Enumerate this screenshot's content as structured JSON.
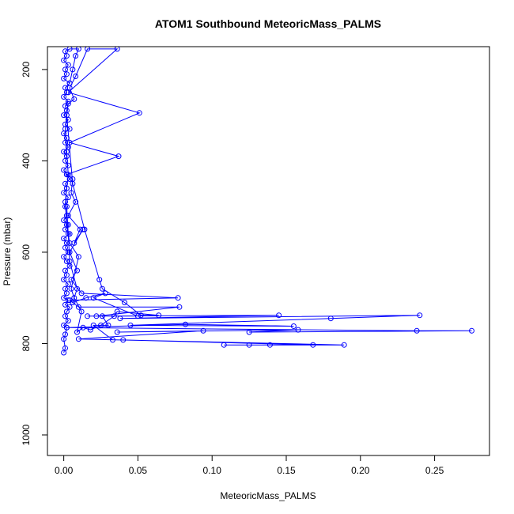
{
  "chart_data": {
    "type": "scatter",
    "title": "ATOM1 Southbound MeteoricMass_PALMS",
    "xlabel": "MeteoricMass_PALMS",
    "ylabel": "Pressure (mbar)",
    "xlim": [
      -0.011,
      0.287
    ],
    "ylim": [
      1045,
      150
    ],
    "y_reversed": true,
    "grid": false,
    "marker": "open-circle",
    "connect_points": true,
    "color": "#0000ff",
    "x_ticks": [
      "0.00",
      "0.05",
      "0.10",
      "0.15",
      "0.20",
      "0.25"
    ],
    "x_tick_values": [
      0,
      0.05,
      0.1,
      0.15,
      0.2,
      0.25
    ],
    "y_ticks": [
      "200",
      "400",
      "600",
      "800",
      "1000"
    ],
    "y_tick_values": [
      200,
      400,
      600,
      800,
      1000
    ],
    "series": [
      {
        "points": [
          [
            0.0,
            820
          ],
          [
            0.001,
            810
          ],
          [
            0.0,
            790
          ],
          [
            0.001,
            780
          ],
          [
            0.002,
            765
          ],
          [
            0.0,
            760
          ],
          [
            0.003,
            750
          ],
          [
            0.001,
            740
          ],
          [
            0.002,
            730
          ],
          [
            0.004,
            720
          ],
          [
            0.001,
            715
          ],
          [
            0.003,
            705
          ],
          [
            0.0,
            700
          ],
          [
            0.002,
            690
          ],
          [
            0.001,
            680
          ],
          [
            0.003,
            670
          ],
          [
            0.0,
            660
          ],
          [
            0.002,
            650
          ],
          [
            0.001,
            640
          ],
          [
            0.004,
            630
          ],
          [
            0.002,
            620
          ],
          [
            0.0,
            610
          ],
          [
            0.003,
            600
          ],
          [
            0.001,
            590
          ],
          [
            0.002,
            580
          ],
          [
            0.0,
            570
          ],
          [
            0.004,
            560
          ],
          [
            0.001,
            550
          ],
          [
            0.003,
            540
          ],
          [
            0.0,
            530
          ],
          [
            0.002,
            520
          ],
          [
            0.001,
            500
          ],
          [
            0.003,
            480
          ],
          [
            0.0,
            470
          ],
          [
            0.002,
            460
          ],
          [
            0.001,
            450
          ],
          [
            0.004,
            440
          ],
          [
            0.002,
            430
          ],
          [
            0.0,
            420
          ],
          [
            0.003,
            410
          ],
          [
            0.001,
            400
          ],
          [
            0.002,
            390
          ],
          [
            0.0,
            380
          ],
          [
            0.003,
            370
          ],
          [
            0.001,
            360
          ],
          [
            0.002,
            350
          ],
          [
            0.0,
            340
          ],
          [
            0.004,
            330
          ],
          [
            0.001,
            320
          ],
          [
            0.003,
            310
          ],
          [
            0.0,
            300
          ],
          [
            0.002,
            290
          ],
          [
            0.001,
            280
          ],
          [
            0.003,
            270
          ],
          [
            0.0,
            260
          ],
          [
            0.002,
            250
          ],
          [
            0.001,
            240
          ],
          [
            0.004,
            230
          ],
          [
            0.0,
            220
          ],
          [
            0.002,
            210
          ],
          [
            0.001,
            200
          ],
          [
            0.003,
            190
          ],
          [
            0.0,
            180
          ],
          [
            0.002,
            170
          ],
          [
            0.001,
            160
          ],
          [
            0.004,
            155
          ],
          [
            0.01,
            155
          ],
          [
            0.008,
            170
          ],
          [
            0.006,
            200
          ],
          [
            0.004,
            230
          ]
        ]
      },
      {
        "points": [
          [
            0.003,
            250
          ],
          [
            0.051,
            295
          ],
          [
            0.004,
            360
          ],
          [
            0.037,
            390
          ],
          [
            0.002,
            430
          ],
          [
            0.006,
            440
          ],
          [
            0.005,
            470
          ],
          [
            0.008,
            490
          ],
          [
            0.003,
            520
          ],
          [
            0.011,
            550
          ],
          [
            0.007,
            580
          ],
          [
            0.013,
            550
          ],
          [
            0.004,
            600
          ],
          [
            0.009,
            640
          ],
          [
            0.005,
            660
          ],
          [
            0.012,
            690
          ],
          [
            0.077,
            700
          ],
          [
            0.004,
            705
          ],
          [
            0.01,
            720
          ],
          [
            0.078,
            720
          ],
          [
            0.022,
            740
          ],
          [
            0.145,
            738
          ],
          [
            0.038,
            745
          ],
          [
            0.24,
            738
          ],
          [
            0.18,
            745
          ],
          [
            0.045,
            760
          ],
          [
            0.155,
            762
          ],
          [
            0.082,
            758
          ],
          [
            0.002,
            765
          ],
          [
            0.238,
            772
          ],
          [
            0.275,
            772
          ],
          [
            0.125,
            775
          ],
          [
            0.158,
            770
          ],
          [
            0.036,
            775
          ],
          [
            0.094,
            772
          ],
          [
            0.01,
            790
          ],
          [
            0.189,
            803
          ],
          [
            0.108,
            803
          ],
          [
            0.125,
            803
          ],
          [
            0.139,
            803
          ],
          [
            0.168,
            803
          ],
          [
            0.04,
            792
          ],
          [
            0.033,
            792
          ],
          [
            0.02,
            760
          ],
          [
            0.03,
            760
          ],
          [
            0.026,
            740
          ],
          [
            0.016,
            740
          ],
          [
            0.05,
            740
          ],
          [
            0.02,
            700
          ],
          [
            0.028,
            690
          ],
          [
            0.015,
            700
          ],
          [
            0.006,
            710
          ],
          [
            0.009,
            680
          ],
          [
            0.004,
            620
          ],
          [
            0.003,
            560
          ],
          [
            0.002,
            500
          ]
        ]
      },
      {
        "points": [
          [
            0.002,
            300
          ],
          [
            0.006,
            450
          ],
          [
            0.014,
            550
          ],
          [
            0.024,
            660
          ],
          [
            0.026,
            680
          ],
          [
            0.041,
            710
          ],
          [
            0.052,
            738
          ],
          [
            0.064,
            738
          ],
          [
            0.036,
            730
          ],
          [
            0.034,
            740
          ],
          [
            0.025,
            760
          ],
          [
            0.018,
            770
          ],
          [
            0.013,
            765
          ],
          [
            0.009,
            775
          ],
          [
            0.012,
            730
          ],
          [
            0.007,
            700
          ],
          [
            0.005,
            680
          ],
          [
            0.01,
            610
          ],
          [
            0.004,
            580
          ],
          [
            0.002,
            540
          ],
          [
            0.001,
            490
          ],
          [
            0.003,
            430
          ],
          [
            0.002,
            380
          ],
          [
            0.001,
            330
          ],
          [
            0.003,
            275
          ],
          [
            0.007,
            265
          ],
          [
            0.004,
            240
          ],
          [
            0.008,
            215
          ],
          [
            0.016,
            155
          ],
          [
            0.036,
            155
          ],
          [
            0.003,
            250
          ]
        ]
      }
    ]
  }
}
